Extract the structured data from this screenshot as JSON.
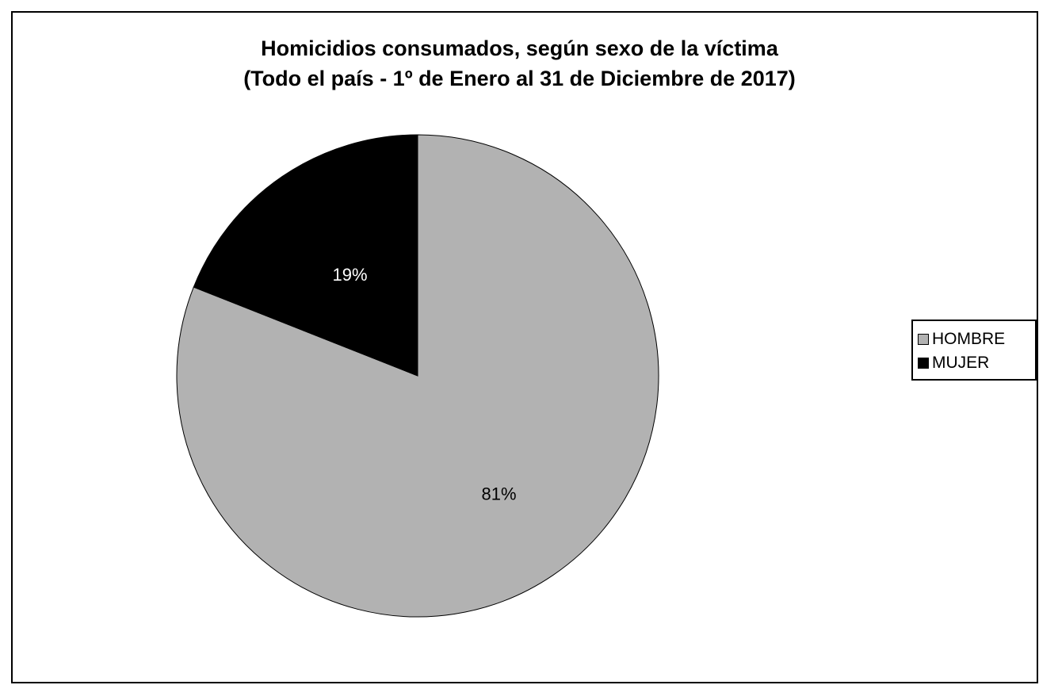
{
  "chart_data": {
    "type": "pie",
    "title": "Homicidios consumados, según sexo de la víctima",
    "subtitle": "(Todo el país - 1º de Enero al 31 de Diciembre de 2017)",
    "categories": [
      "HOMBRE",
      "MUJER"
    ],
    "values": [
      81,
      19
    ],
    "value_labels": [
      "81%",
      "19%"
    ],
    "colors": [
      "#b2b2b2",
      "#000000"
    ],
    "label_colors": [
      "#000000",
      "#ffffff"
    ],
    "legend_position": "right",
    "start_angle": "12 o'clock",
    "direction": "clockwise"
  }
}
